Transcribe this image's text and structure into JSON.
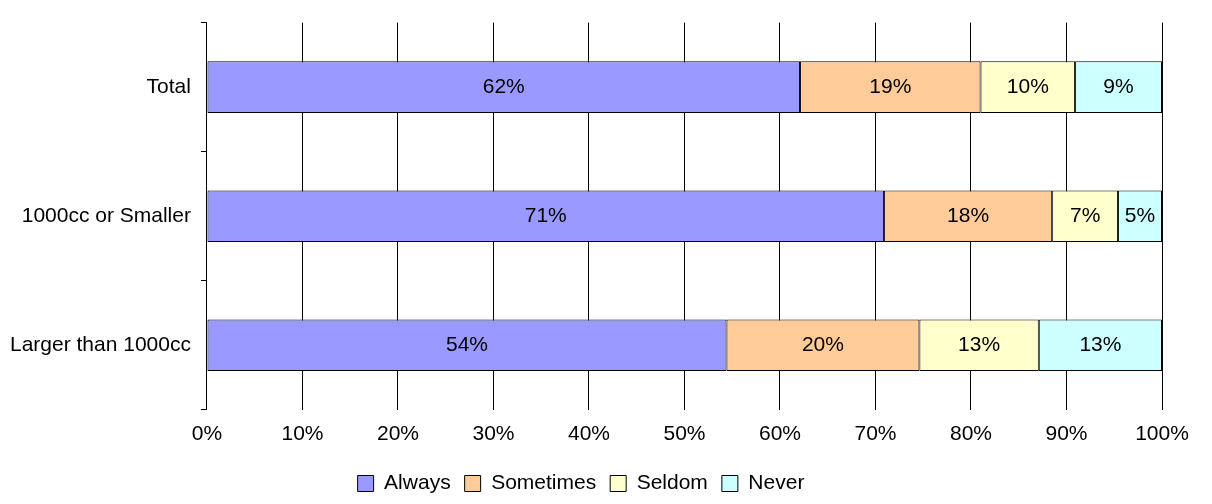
{
  "chart_data": {
    "type": "bar",
    "orientation": "horizontal",
    "stacked": true,
    "categories": [
      "Total",
      "1000cc or Smaller",
      "Larger than 1000cc"
    ],
    "series": [
      {
        "name": "Always",
        "color": "#9999ff",
        "values": [
          62.1,
          70.9,
          54.4
        ],
        "value_labels": [
          "62%",
          "71%",
          "54%"
        ]
      },
      {
        "name": "Sometimes",
        "color": "#ffcc99",
        "values": [
          18.9,
          17.6,
          20.2
        ],
        "value_labels": [
          "19%",
          "18%",
          "20%"
        ]
      },
      {
        "name": "Seldom",
        "color": "#ffffcc",
        "values": [
          9.9,
          6.9,
          12.5
        ],
        "value_labels": [
          "10%",
          "7%",
          "13%"
        ]
      },
      {
        "name": "Never",
        "color": "#ccffff",
        "values": [
          9.1,
          4.6,
          12.9
        ],
        "value_labels": [
          "9%",
          "5%",
          "13%"
        ]
      }
    ],
    "xlim": [
      0,
      100
    ],
    "xticks": [
      {
        "value": 0,
        "label": "0%"
      },
      {
        "value": 10,
        "label": "10%"
      },
      {
        "value": 20,
        "label": "20%"
      },
      {
        "value": 30,
        "label": "30%"
      },
      {
        "value": 40,
        "label": "40%"
      },
      {
        "value": 50,
        "label": "50%"
      },
      {
        "value": 60,
        "label": "60%"
      },
      {
        "value": 70,
        "label": "70%"
      },
      {
        "value": 80,
        "label": "80%"
      },
      {
        "value": 90,
        "label": "90%"
      },
      {
        "value": 100,
        "label": "100%"
      }
    ],
    "grid": "x",
    "legend": "bottom"
  }
}
